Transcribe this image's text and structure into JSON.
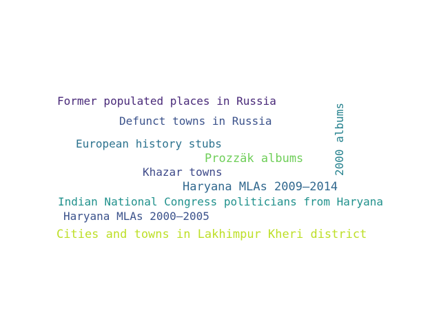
{
  "words": [
    {
      "id": "former-populated-places",
      "text": "Former populated places in Russia",
      "color": "#482878"
    },
    {
      "id": "defunct-towns",
      "text": "Defunct towns in Russia",
      "color": "#3b528b"
    },
    {
      "id": "european-history-stubs",
      "text": "European history stubs",
      "color": "#2c728e"
    },
    {
      "id": "prozzak-albums",
      "text": "Prozzäk albums",
      "color": "#6ece58"
    },
    {
      "id": "2000-albums",
      "text": "2000 albums",
      "color": "#26828e"
    },
    {
      "id": "khazar-towns",
      "text": "Khazar towns",
      "color": "#3e4a89"
    },
    {
      "id": "haryana-mlas-2009-2014",
      "text": "Haryana MLAs 2009–2014",
      "color": "#31688e"
    },
    {
      "id": "indian-national-congress",
      "text": "Indian National Congress politicians from Haryana",
      "color": "#21918c"
    },
    {
      "id": "haryana-mlas-2000-2005",
      "text": "Haryana MLAs 2000–2005",
      "color": "#3b528b"
    },
    {
      "id": "cities-lakhimpur-kheri",
      "text": "Cities and towns in Lakhimpur Kheri district",
      "color": "#bddf26"
    }
  ]
}
